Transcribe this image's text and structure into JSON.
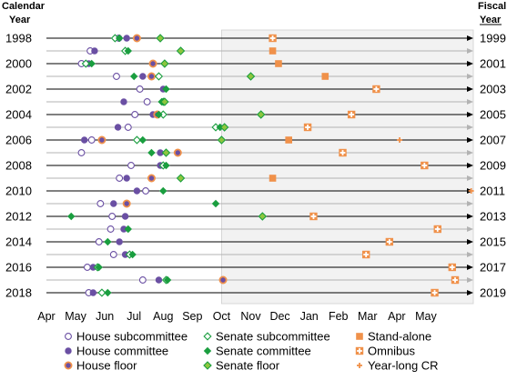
{
  "chart_data": {
    "type": "scatter",
    "left_header": [
      "Calendar",
      "Year"
    ],
    "right_header": [
      "Fiscal",
      "Year"
    ],
    "x_tick_labels": [
      "Apr",
      "May",
      "Jun",
      "Jul",
      "Aug",
      "Sep",
      "Oct",
      "Nov",
      "Dec",
      "Jan",
      "Feb",
      "Mar",
      "Apr",
      "May"
    ],
    "calendar_years": [
      "1998",
      "2000",
      "2002",
      "2004",
      "2006",
      "2008",
      "2010",
      "2012",
      "2014",
      "2016",
      "2018"
    ],
    "fiscal_years": [
      "1999",
      "2001",
      "2003",
      "2005",
      "2007",
      "2009",
      "2011",
      "2013",
      "2015",
      "2017",
      "2019"
    ],
    "x_range_months_from_apr1": [
      0,
      14
    ],
    "shaded_region_start_month": 6,
    "years": [
      1998,
      1999,
      2000,
      2001,
      2002,
      2003,
      2004,
      2005,
      2006,
      2007,
      2008,
      2009,
      2010,
      2011,
      2012,
      2013,
      2014,
      2015,
      2016,
      2017,
      2018
    ],
    "colors": {
      "house_purple": "#6a4fa3",
      "senate_green": "#1a9e3f",
      "senate_floor_fill": "#8dc63f",
      "orange": "#f0914a",
      "shade": "#f2f2f2",
      "arrow": "#000000",
      "grey_arrow": "#b3b3b3"
    },
    "series": [
      {
        "name": "House subcommittee",
        "marker": "open-circle",
        "points": [
          [
            1998,
            2.48
          ],
          [
            1999,
            1.5
          ],
          [
            2000,
            1.2
          ],
          [
            2001,
            2.4
          ],
          [
            2002,
            3.2
          ],
          [
            2003,
            3.45
          ],
          [
            2004,
            3.03
          ],
          [
            2005,
            2.8
          ],
          [
            2006,
            1.55
          ],
          [
            2007,
            1.2
          ],
          [
            2008,
            2.9
          ],
          [
            2009,
            2.5
          ],
          [
            2010,
            3.4
          ],
          [
            2011,
            1.85
          ],
          [
            2012,
            2.25
          ],
          [
            2013,
            2.2
          ],
          [
            2014,
            1.8
          ],
          [
            2015,
            2.3
          ],
          [
            2016,
            1.4
          ],
          [
            2017,
            3.3
          ],
          [
            2018,
            1.45
          ]
        ]
      },
      {
        "name": "House committee",
        "marker": "filled-circle",
        "points": [
          [
            1998,
            2.75
          ],
          [
            1999,
            1.65
          ],
          [
            2000,
            1.45
          ],
          [
            2001,
            3.3
          ],
          [
            2002,
            4.0
          ],
          [
            2003,
            2.65
          ],
          [
            2004,
            3.65
          ],
          [
            2005,
            2.45
          ],
          [
            2006,
            1.3
          ],
          [
            2007,
            3.9
          ],
          [
            2008,
            3.9
          ],
          [
            2009,
            2.75
          ],
          [
            2010,
            3.1
          ],
          [
            2011,
            2.3
          ],
          [
            2012,
            2.7
          ],
          [
            2013,
            2.65
          ],
          [
            2014,
            2.5
          ],
          [
            2015,
            2.7
          ],
          [
            2016,
            1.6
          ],
          [
            2017,
            3.85
          ],
          [
            2018,
            1.6
          ]
        ]
      },
      {
        "name": "House floor",
        "marker": "orange-ring-circle",
        "points": [
          [
            1998,
            3.1
          ],
          [
            2000,
            3.65
          ],
          [
            2001,
            3.6
          ],
          [
            2004,
            3.8
          ],
          [
            2006,
            1.9
          ],
          [
            2007,
            4.5
          ],
          [
            2009,
            3.6
          ],
          [
            2011,
            2.75
          ],
          [
            2017,
            6.05
          ]
        ]
      },
      {
        "name": "Senate subcommittee",
        "marker": "open-diamond",
        "points": [
          [
            1998,
            2.35
          ],
          [
            1999,
            2.7
          ],
          [
            2000,
            1.35
          ],
          [
            2001,
            3.85
          ],
          [
            2003,
            4.0
          ],
          [
            2004,
            4.0
          ],
          [
            2005,
            5.8
          ],
          [
            2006,
            3.1
          ],
          [
            2008,
            4.0
          ],
          [
            2015,
            2.85
          ],
          [
            2016,
            1.75
          ],
          [
            2017,
            4.1
          ],
          [
            2018,
            1.9
          ]
        ]
      },
      {
        "name": "Senate committee",
        "marker": "filled-diamond",
        "points": [
          [
            1998,
            2.5
          ],
          [
            1999,
            2.8
          ],
          [
            2000,
            1.55
          ],
          [
            2001,
            3.0
          ],
          [
            2002,
            4.1
          ],
          [
            2003,
            3.95
          ],
          [
            2004,
            3.85
          ],
          [
            2005,
            5.95
          ],
          [
            2006,
            3.3
          ],
          [
            2007,
            3.6
          ],
          [
            2008,
            4.1
          ],
          [
            2010,
            4.0
          ],
          [
            2011,
            5.8
          ],
          [
            2012,
            0.85
          ],
          [
            2013,
            2.8
          ],
          [
            2014,
            2.1
          ],
          [
            2015,
            2.95
          ],
          [
            2016,
            1.8
          ],
          [
            2017,
            4.15
          ],
          [
            2018,
            2.1
          ]
        ]
      },
      {
        "name": "Senate floor",
        "marker": "green-filled-diamond",
        "points": [
          [
            1998,
            3.9
          ],
          [
            1999,
            4.6
          ],
          [
            2000,
            4.05
          ],
          [
            2001,
            7.0
          ],
          [
            2003,
            4.05
          ],
          [
            2004,
            7.35
          ],
          [
            2005,
            6.1
          ],
          [
            2006,
            6.0
          ],
          [
            2007,
            4.1
          ],
          [
            2009,
            4.6
          ],
          [
            2012,
            7.4
          ]
        ]
      },
      {
        "name": "Stand-alone",
        "marker": "orange-square",
        "points": [
          [
            1999,
            7.75
          ],
          [
            2000,
            7.95
          ],
          [
            2001,
            9.55
          ],
          [
            2006,
            8.3
          ],
          [
            2009,
            7.75
          ]
        ]
      },
      {
        "name": "Omnibus",
        "marker": "orange-boxed-cross",
        "points": [
          [
            1998,
            7.75
          ],
          [
            2002,
            11.3
          ],
          [
            2004,
            10.45
          ],
          [
            2005,
            8.95
          ],
          [
            2007,
            10.15
          ],
          [
            2008,
            12.95
          ],
          [
            2012,
            9.15
          ],
          [
            2013,
            13.4
          ],
          [
            2014,
            11.75
          ],
          [
            2015,
            10.95
          ],
          [
            2016,
            13.9
          ],
          [
            2017,
            14.0
          ],
          [
            2018,
            13.3
          ]
        ]
      },
      {
        "name": "Year-long CR",
        "marker": "orange-plus",
        "points": [
          [
            2006,
            12.1
          ],
          [
            2010,
            14.55
          ]
        ]
      }
    ],
    "legend": [
      {
        "label": "House subcommittee",
        "marker": "open-circle"
      },
      {
        "label": "Senate subcommittee",
        "marker": "open-diamond"
      },
      {
        "label": "Stand-alone",
        "marker": "orange-square"
      },
      {
        "label": "House committee",
        "marker": "filled-circle"
      },
      {
        "label": "Senate committee",
        "marker": "filled-diamond"
      },
      {
        "label": "Omnibus",
        "marker": "orange-boxed-cross"
      },
      {
        "label": "House floor",
        "marker": "orange-ring-circle"
      },
      {
        "label": "Senate floor",
        "marker": "green-filled-diamond"
      },
      {
        "label": "Year-long CR",
        "marker": "orange-plus"
      }
    ],
    "legend_placement": "bottom"
  }
}
